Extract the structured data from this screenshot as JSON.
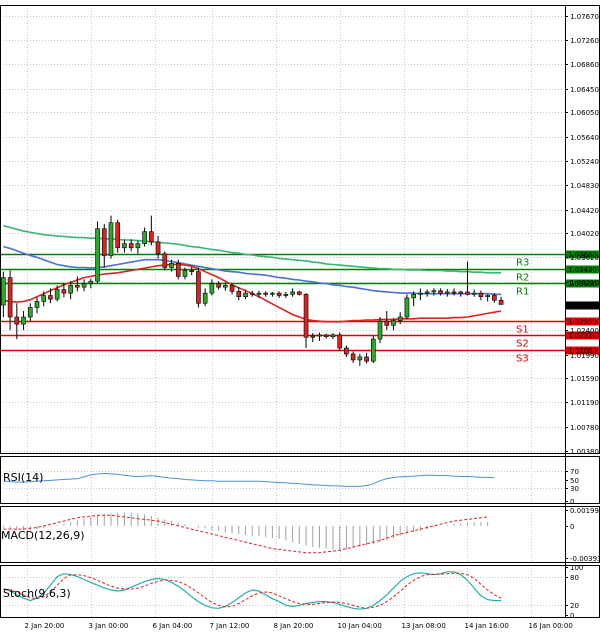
{
  "chart_data": {
    "type": "candlestick",
    "price_axis": {
      "ticks": [
        "1.07670",
        "1.07260",
        "1.06860",
        "1.06450",
        "1.06050",
        "1.05640",
        "1.05240",
        "1.04830",
        "1.04420",
        "1.04020",
        "1.03620",
        "1.03210",
        "1.02400",
        "1.01990",
        "1.01590",
        "1.01190",
        "1.00780",
        "1.00380"
      ],
      "ylim": [
        1.0034,
        1.0785
      ]
    },
    "time_axis": {
      "labels": [
        "2 Jan 20:00",
        "3 Jan 00:00",
        "6 Jan 04:00",
        "7 Jan 12:00",
        "8 Jan 20:00",
        "10 Jan 04:00",
        "13 Jan 08:00",
        "14 Jan 16:00",
        "16 Jan 00:00"
      ],
      "label_positions": [
        4,
        13.5,
        23,
        31.5,
        41,
        50.5,
        60,
        69.5,
        79
      ],
      "bars": 84
    },
    "candles": [
      {
        "o": 1.0282,
        "h": 1.0338,
        "l": 1.0262,
        "c": 1.0328
      },
      {
        "o": 1.0328,
        "h": 1.034,
        "l": 1.024,
        "c": 1.0262
      },
      {
        "o": 1.0262,
        "h": 1.0285,
        "l": 1.0225,
        "c": 1.025
      },
      {
        "o": 1.025,
        "h": 1.0272,
        "l": 1.024,
        "c": 1.0262
      },
      {
        "o": 1.0262,
        "h": 1.0285,
        "l": 1.0255,
        "c": 1.0278
      },
      {
        "o": 1.0278,
        "h": 1.0295,
        "l": 1.0268,
        "c": 1.0288
      },
      {
        "o": 1.0288,
        "h": 1.0305,
        "l": 1.028,
        "c": 1.0298
      },
      {
        "o": 1.0298,
        "h": 1.031,
        "l": 1.0285,
        "c": 1.0292
      },
      {
        "o": 1.0292,
        "h": 1.0315,
        "l": 1.0288,
        "c": 1.0308
      },
      {
        "o": 1.0308,
        "h": 1.0318,
        "l": 1.0295,
        "c": 1.0302
      },
      {
        "o": 1.0302,
        "h": 1.0322,
        "l": 1.0292,
        "c": 1.0315
      },
      {
        "o": 1.0315,
        "h": 1.033,
        "l": 1.0305,
        "c": 1.0312
      },
      {
        "o": 1.0312,
        "h": 1.0325,
        "l": 1.0305,
        "c": 1.0318
      },
      {
        "o": 1.0318,
        "h": 1.0326,
        "l": 1.031,
        "c": 1.0322
      },
      {
        "o": 1.0322,
        "h": 1.0422,
        "l": 1.0318,
        "c": 1.041
      },
      {
        "o": 1.041,
        "h": 1.0418,
        "l": 1.0345,
        "c": 1.0365
      },
      {
        "o": 1.0365,
        "h": 1.0432,
        "l": 1.036,
        "c": 1.042
      },
      {
        "o": 1.042,
        "h": 1.0425,
        "l": 1.037,
        "c": 1.0378
      },
      {
        "o": 1.0378,
        "h": 1.0392,
        "l": 1.037,
        "c": 1.0385
      },
      {
        "o": 1.0385,
        "h": 1.0392,
        "l": 1.0372,
        "c": 1.0378
      },
      {
        "o": 1.0378,
        "h": 1.039,
        "l": 1.0368,
        "c": 1.0385
      },
      {
        "o": 1.0385,
        "h": 1.0412,
        "l": 1.038,
        "c": 1.0405
      },
      {
        "o": 1.0405,
        "h": 1.0432,
        "l": 1.0382,
        "c": 1.0388
      },
      {
        "o": 1.0388,
        "h": 1.0398,
        "l": 1.036,
        "c": 1.0368
      },
      {
        "o": 1.0368,
        "h": 1.0372,
        "l": 1.034,
        "c": 1.0345
      },
      {
        "o": 1.0345,
        "h": 1.0358,
        "l": 1.0338,
        "c": 1.0352
      },
      {
        "o": 1.0352,
        "h": 1.0358,
        "l": 1.0325,
        "c": 1.033
      },
      {
        "o": 1.033,
        "h": 1.0345,
        "l": 1.0325,
        "c": 1.034
      },
      {
        "o": 1.034,
        "h": 1.0346,
        "l": 1.0332,
        "c": 1.0338
      },
      {
        "o": 1.0338,
        "h": 1.0345,
        "l": 1.0278,
        "c": 1.0285
      },
      {
        "o": 1.0285,
        "h": 1.031,
        "l": 1.028,
        "c": 1.0302
      },
      {
        "o": 1.0302,
        "h": 1.0325,
        "l": 1.0298,
        "c": 1.0318
      },
      {
        "o": 1.0318,
        "h": 1.0322,
        "l": 1.0308,
        "c": 1.0312
      },
      {
        "o": 1.0312,
        "h": 1.032,
        "l": 1.0306,
        "c": 1.0315
      },
      {
        "o": 1.0315,
        "h": 1.0318,
        "l": 1.03,
        "c": 1.0305
      },
      {
        "o": 1.0305,
        "h": 1.0312,
        "l": 1.029,
        "c": 1.0296
      },
      {
        "o": 1.0296,
        "h": 1.0308,
        "l": 1.0292,
        "c": 1.0302
      },
      {
        "o": 1.0302,
        "h": 1.0306,
        "l": 1.0296,
        "c": 1.03
      },
      {
        "o": 1.03,
        "h": 1.0306,
        "l": 1.0294,
        "c": 1.0302
      },
      {
        "o": 1.0302,
        "h": 1.0305,
        "l": 1.0296,
        "c": 1.03
      },
      {
        "o": 1.03,
        "h": 1.0304,
        "l": 1.0296,
        "c": 1.0302
      },
      {
        "o": 1.0302,
        "h": 1.0305,
        "l": 1.0294,
        "c": 1.0298
      },
      {
        "o": 1.0298,
        "h": 1.0304,
        "l": 1.0294,
        "c": 1.03
      },
      {
        "o": 1.03,
        "h": 1.031,
        "l": 1.0296,
        "c": 1.0304
      },
      {
        "o": 1.0304,
        "h": 1.0306,
        "l": 1.0298,
        "c": 1.03
      },
      {
        "o": 1.03,
        "h": 1.0302,
        "l": 1.021,
        "c": 1.0228
      },
      {
        "o": 1.0228,
        "h": 1.0235,
        "l": 1.022,
        "c": 1.023
      },
      {
        "o": 1.023,
        "h": 1.0236,
        "l": 1.0222,
        "c": 1.0232
      },
      {
        "o": 1.0232,
        "h": 1.0234,
        "l": 1.0226,
        "c": 1.0229
      },
      {
        "o": 1.0229,
        "h": 1.0235,
        "l": 1.0225,
        "c": 1.0232
      },
      {
        "o": 1.0232,
        "h": 1.0236,
        "l": 1.0205,
        "c": 1.021
      },
      {
        "o": 1.021,
        "h": 1.0214,
        "l": 1.0195,
        "c": 1.02
      },
      {
        "o": 1.02,
        "h": 1.0204,
        "l": 1.0185,
        "c": 1.019
      },
      {
        "o": 1.019,
        "h": 1.02,
        "l": 1.018,
        "c": 1.0195
      },
      {
        "o": 1.0195,
        "h": 1.0202,
        "l": 1.0184,
        "c": 1.0188
      },
      {
        "o": 1.0188,
        "h": 1.023,
        "l": 1.0185,
        "c": 1.0225
      },
      {
        "o": 1.0225,
        "h": 1.0262,
        "l": 1.0218,
        "c": 1.0255
      },
      {
        "o": 1.0255,
        "h": 1.0272,
        "l": 1.024,
        "c": 1.0248
      },
      {
        "o": 1.0248,
        "h": 1.026,
        "l": 1.024,
        "c": 1.0256
      },
      {
        "o": 1.0256,
        "h": 1.027,
        "l": 1.025,
        "c": 1.0262
      },
      {
        "o": 1.0262,
        "h": 1.03,
        "l": 1.0258,
        "c": 1.0294
      },
      {
        "o": 1.0294,
        "h": 1.0305,
        "l": 1.028,
        "c": 1.03
      },
      {
        "o": 1.03,
        "h": 1.031,
        "l": 1.029,
        "c": 1.0302
      },
      {
        "o": 1.0302,
        "h": 1.0308,
        "l": 1.0296,
        "c": 1.0304
      },
      {
        "o": 1.0304,
        "h": 1.031,
        "l": 1.0298,
        "c": 1.0306
      },
      {
        "o": 1.0306,
        "h": 1.031,
        "l": 1.0298,
        "c": 1.0302
      },
      {
        "o": 1.0302,
        "h": 1.0309,
        "l": 1.0296,
        "c": 1.0304
      },
      {
        "o": 1.0304,
        "h": 1.031,
        "l": 1.0298,
        "c": 1.0302
      },
      {
        "o": 1.0302,
        "h": 1.0306,
        "l": 1.0296,
        "c": 1.0304
      },
      {
        "o": 1.0304,
        "h": 1.0355,
        "l": 1.0298,
        "c": 1.03
      },
      {
        "o": 1.03,
        "h": 1.0308,
        "l": 1.0296,
        "c": 1.0302
      },
      {
        "o": 1.0302,
        "h": 1.0306,
        "l": 1.029,
        "c": 1.0296
      },
      {
        "o": 1.0296,
        "h": 1.03,
        "l": 1.0288,
        "c": 1.0298
      },
      {
        "o": 1.0298,
        "h": 1.0302,
        "l": 1.0286,
        "c": 1.029
      },
      {
        "o": 1.029,
        "h": 1.0296,
        "l": 1.0283,
        "c": 1.0283
      }
    ],
    "moving_averages": [
      {
        "color": "#3cb371",
        "values": [
          1.0415,
          1.0412,
          1.0409,
          1.0406,
          1.0404,
          1.0402,
          1.04,
          1.0399,
          1.0398,
          1.0397,
          1.0396,
          1.0395,
          1.0395,
          1.0394,
          1.0394,
          1.0393,
          1.0393,
          1.0392,
          1.0391,
          1.0391,
          1.039,
          1.0389,
          1.0388,
          1.0387,
          1.0386,
          1.0385,
          1.0384,
          1.0382,
          1.038,
          1.0379,
          1.0377,
          1.0375,
          1.0374,
          1.0372,
          1.037,
          1.0369,
          1.0367,
          1.0366,
          1.0364,
          1.0363,
          1.0362,
          1.036,
          1.0359,
          1.0358,
          1.0357,
          1.0356,
          1.0354,
          1.0353,
          1.0351,
          1.035,
          1.0349,
          1.0348,
          1.0347,
          1.0346,
          1.0345,
          1.0344,
          1.0343,
          1.0343,
          1.0342,
          1.0342,
          1.0341,
          1.0341,
          1.0341,
          1.034,
          1.034,
          1.034,
          1.0339,
          1.0339,
          1.0338,
          1.0338,
          1.0337,
          1.0337,
          1.0336,
          1.0336,
          1.0336
        ]
      },
      {
        "color": "#4a6fd6",
        "values": [
          1.038,
          1.0377,
          1.0373,
          1.0369,
          1.0365,
          1.0362,
          1.0358,
          1.0354,
          1.035,
          1.0348,
          1.0346,
          1.0345,
          1.0345,
          1.0344,
          1.0345,
          1.0346,
          1.0348,
          1.035,
          1.0352,
          1.0354,
          1.0356,
          1.0358,
          1.0358,
          1.0358,
          1.0357,
          1.0355,
          1.0353,
          1.0351,
          1.0349,
          1.0347,
          1.0345,
          1.0343,
          1.0341,
          1.0339,
          1.0338,
          1.0337,
          1.0335,
          1.0334,
          1.0333,
          1.0332,
          1.033,
          1.0328,
          1.0327,
          1.0325,
          1.0324,
          1.0322,
          1.0321,
          1.0319,
          1.0318,
          1.0316,
          1.0315,
          1.0313,
          1.0312,
          1.031,
          1.0308,
          1.0306,
          1.0305,
          1.0304,
          1.0303,
          1.0302,
          1.0302,
          1.0302,
          1.0301,
          1.0301,
          1.0301,
          1.0301,
          1.0301,
          1.0301,
          1.0301,
          1.0301,
          1.0301,
          1.0301,
          1.0301,
          1.03,
          1.03
        ]
      },
      {
        "color": "#e02020",
        "values": [
          1.029,
          1.0288,
          1.0287,
          1.0288,
          1.0291,
          1.0296,
          1.0301,
          1.0306,
          1.0311,
          1.0316,
          1.032,
          1.0324,
          1.0328,
          1.033,
          1.0332,
          1.0334,
          1.0335,
          1.0336,
          1.0338,
          1.034,
          1.0342,
          1.0344,
          1.0346,
          1.0348,
          1.0349,
          1.035,
          1.035,
          1.0349,
          1.0347,
          1.0343,
          1.0338,
          1.0333,
          1.0328,
          1.0322,
          1.0316,
          1.0311,
          1.0306,
          1.0301,
          1.0296,
          1.029,
          1.0284,
          1.0278,
          1.0272,
          1.0266,
          1.0262,
          1.0258,
          1.0256,
          1.0255,
          1.0254,
          1.0254,
          1.0254,
          1.0255,
          1.0256,
          1.0256,
          1.0257,
          1.0257,
          1.0258,
          1.0258,
          1.0258,
          1.0259,
          1.0259,
          1.0259,
          1.026,
          1.026,
          1.026,
          1.026,
          1.026,
          1.0261,
          1.0261,
          1.0262,
          1.0264,
          1.0266,
          1.0268,
          1.027,
          1.0272
        ]
      }
    ],
    "ma_start_bar": 0,
    "ma_offsets": [
      0,
      0,
      0
    ],
    "levels": [
      {
        "price": 1.0368,
        "label": "1.03680",
        "name": "R3",
        "color": "#008000",
        "tag": "1.03680"
      },
      {
        "price": 1.0343,
        "label": "1.03430",
        "name": "R2",
        "color": "#008000",
        "tag": "1.03430"
      },
      {
        "price": 1.0319,
        "label": "1.03190",
        "name": "R1",
        "color": "#008000",
        "tag": "1.03190"
      },
      {
        "price": 1.0255,
        "label": "1.02550",
        "name": "S1",
        "color": "#e00000",
        "tag": "1.02550"
      },
      {
        "price": 1.0231,
        "label": "1.02310",
        "name": "S2",
        "color": "#e00000",
        "tag": "1.02310"
      },
      {
        "price": 1.0206,
        "label": "1.02060",
        "name": "S3",
        "color": "#e00000",
        "tag": "1.02060"
      }
    ],
    "current_price": "1.02829",
    "current_value": 1.02829,
    "hidden_tick_labels": [
      "1.03820"
    ],
    "rsi": {
      "title": "RSI(14)",
      "ticks": [
        "70",
        "50",
        "30",
        "0"
      ],
      "tick_values": [
        70,
        50,
        30,
        0
      ],
      "color": "#4a90d9",
      "values": [
        46,
        45,
        44,
        44,
        45,
        46,
        47,
        48,
        49,
        50,
        51,
        52,
        56,
        61,
        63,
        64,
        63,
        62,
        60,
        58,
        57,
        58,
        59,
        57,
        55,
        53,
        52,
        50,
        49,
        48,
        47,
        47,
        46,
        46,
        46,
        46,
        46,
        46,
        46,
        45,
        44,
        43,
        42,
        41,
        40,
        39,
        38,
        37,
        36,
        35,
        35,
        34,
        34,
        34,
        36,
        40,
        47,
        52,
        55,
        56,
        57,
        58,
        59,
        60,
        60,
        59,
        59,
        58,
        57,
        57,
        56,
        55,
        55,
        54
      ]
    },
    "macd": {
      "title": "MACD(12,26,9)",
      "ticks": [
        "0.001992",
        "0",
        "-0.003938"
      ],
      "tick_values": [
        0.001992,
        0,
        -0.003938
      ],
      "histogram": [
        -0.0002,
        -0.0004,
        -0.0005,
        -0.0006,
        -0.0005,
        -0.0004,
        -0.0003,
        -0.0001,
        0.0001,
        0.0003,
        0.0005,
        0.0007,
        0.0009,
        0.0011,
        0.0013,
        0.0014,
        0.0015,
        0.0016,
        0.0016,
        0.0016,
        0.0015,
        0.0014,
        0.0012,
        0.001,
        0.0008,
        0.0006,
        0.0004,
        0.0002,
        0.0,
        -0.0002,
        -0.0003,
        -0.0005,
        -0.0006,
        -0.0008,
        -0.0009,
        -0.001,
        -0.0011,
        -0.0012,
        -0.0013,
        -0.0014,
        -0.0015,
        -0.0016,
        -0.0018,
        -0.002,
        -0.0022,
        -0.0024,
        -0.0026,
        -0.0027,
        -0.0028,
        -0.0029,
        -0.0029,
        -0.0029,
        -0.0028,
        -0.0026,
        -0.0024,
        -0.0022,
        -0.002,
        -0.0018,
        -0.0015,
        -0.0012,
        -0.001,
        -0.0008,
        -0.0006,
        -0.0004,
        -0.0002,
        0.0,
        0.0001,
        0.0002,
        0.0003,
        0.0004,
        0.0004,
        0.0005,
        0.0005
      ],
      "signal_color": "#e02020",
      "signal": [
        -0.0004,
        -0.0004,
        -0.0004,
        -0.0004,
        -0.0003,
        -0.0002,
        0.0,
        0.0002,
        0.0004,
        0.0006,
        0.0008,
        0.001,
        0.0011,
        0.0012,
        0.0013,
        0.0013,
        0.0013,
        0.0012,
        0.0011,
        0.001,
        0.0009,
        0.0008,
        0.0007,
        0.0006,
        0.0004,
        0.0002,
        0.0,
        -0.0002,
        -0.0004,
        -0.0006,
        -0.0008,
        -0.001,
        -0.0012,
        -0.0014,
        -0.0016,
        -0.0018,
        -0.002,
        -0.0022,
        -0.0024,
        -0.0026,
        -0.0028,
        -0.0029,
        -0.003,
        -0.0031,
        -0.0032,
        -0.0033,
        -0.0033,
        -0.0033,
        -0.0032,
        -0.0031,
        -0.003,
        -0.0028,
        -0.0026,
        -0.0024,
        -0.0022,
        -0.002,
        -0.0018,
        -0.0015,
        -0.0012,
        -0.001,
        -0.0008,
        -0.0006,
        -0.0004,
        -0.0002,
        0.0,
        0.0002,
        0.0004,
        0.0006,
        0.0007,
        0.0008,
        0.0009,
        0.001,
        0.0011
      ]
    },
    "stoch": {
      "title": "Stoch(9,6,3)",
      "ticks": [
        "100",
        "80",
        "20",
        "0"
      ],
      "tick_values": [
        100,
        80,
        20,
        0
      ],
      "main_color": "#20b2aa",
      "signal_color": "#e02020",
      "main": [
        55,
        50,
        42,
        35,
        30,
        35,
        45,
        62,
        80,
        86,
        84,
        80,
        74,
        68,
        62,
        56,
        52,
        50,
        52,
        58,
        64,
        70,
        74,
        76,
        74,
        68,
        60,
        50,
        38,
        28,
        20,
        15,
        14,
        18,
        26,
        36,
        46,
        52,
        50,
        42,
        34,
        28,
        20,
        18,
        20,
        24,
        26,
        28,
        28,
        26,
        22,
        18,
        14,
        12,
        14,
        20,
        30,
        42,
        56,
        70,
        80,
        86,
        88,
        86,
        84,
        86,
        90,
        90,
        84,
        72,
        56,
        40,
        32,
        30,
        30
      ],
      "signal": [
        54,
        52,
        48,
        42,
        36,
        34,
        38,
        48,
        62,
        76,
        84,
        84,
        82,
        78,
        72,
        66,
        60,
        56,
        54,
        54,
        56,
        60,
        66,
        70,
        73,
        72,
        70,
        64,
        56,
        46,
        36,
        26,
        20,
        17,
        18,
        24,
        32,
        40,
        46,
        48,
        46,
        40,
        34,
        28,
        24,
        22,
        22,
        24,
        26,
        27,
        26,
        24,
        20,
        16,
        14,
        16,
        20,
        28,
        38,
        50,
        62,
        72,
        80,
        84,
        85,
        85,
        86,
        87,
        87,
        84,
        76,
        64,
        52,
        42,
        35
      ]
    }
  }
}
